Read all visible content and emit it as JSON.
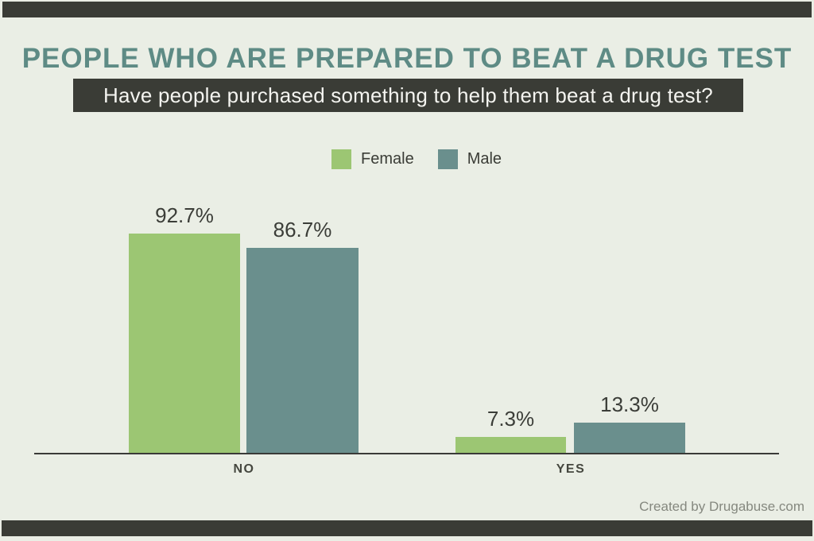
{
  "page": {
    "title": "PEOPLE WHO ARE PREPARED TO BEAT A DRUG TEST",
    "subtitle": "Have people purchased something to help them beat a drug test?",
    "footer_credit": "Created by Drugabuse.com"
  },
  "colors": {
    "background": "#eaeee5",
    "band": "#3a3c36",
    "title": "#5e8b85",
    "female": "#9cc673",
    "male": "#6a8f8d",
    "axis": "#3a3a38",
    "value_text": "#3b3d38",
    "footer_text": "#85887f"
  },
  "chart_data": {
    "type": "bar",
    "title": "PEOPLE WHO ARE PREPARED TO BEAT A DRUG TEST",
    "subtitle": "Have people purchased something to help them beat a drug test?",
    "categories": [
      "NO",
      "YES"
    ],
    "series": [
      {
        "name": "Female",
        "color": "#9cc673",
        "values": [
          92.7,
          7.3
        ],
        "labels": [
          "92.7%",
          "7.3%"
        ]
      },
      {
        "name": "Male",
        "color": "#6a8f8d",
        "values": [
          86.7,
          13.3
        ],
        "labels": [
          "86.7%",
          "13.3%"
        ]
      }
    ],
    "value_format": "percent",
    "ylim": [
      0,
      100
    ],
    "grid": false,
    "legend_position": "top-center",
    "xlabel": "",
    "ylabel": ""
  }
}
